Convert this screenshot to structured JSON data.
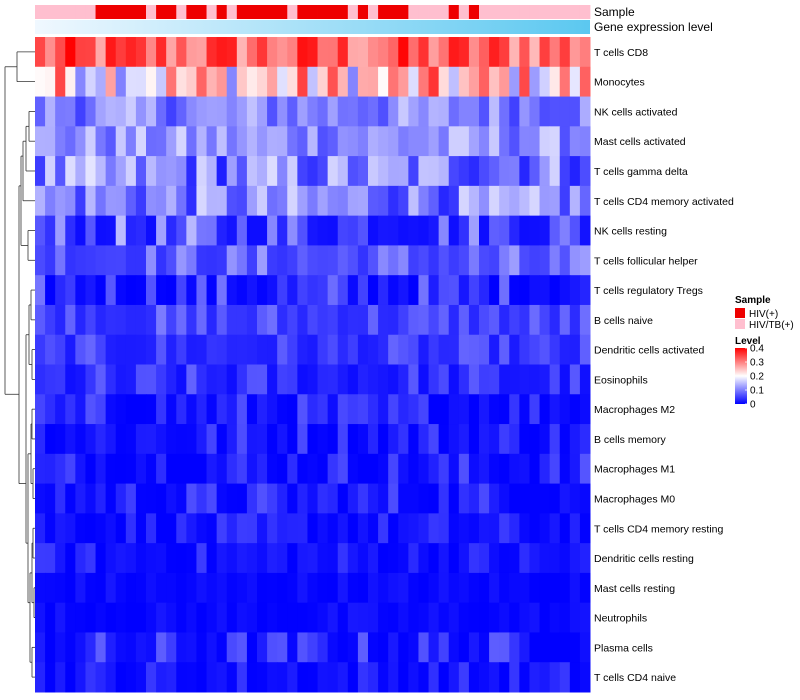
{
  "chart_data": {
    "type": "heatmap",
    "title": "",
    "annotations": [
      {
        "name": "Sample",
        "label": "Sample"
      },
      {
        "name": "Gene expression level",
        "label": "Gene expression level"
      }
    ],
    "sample_groups": {
      "title": "Sample",
      "entries": [
        {
          "label": "HIV(+)",
          "color": "#ee0000"
        },
        {
          "label": "HIV/TB(+)",
          "color": "#ffbfcf"
        }
      ],
      "columns": [
        "HIV/TB(+)",
        "HIV/TB(+)",
        "HIV/TB(+)",
        "HIV/TB(+)",
        "HIV/TB(+)",
        "HIV/TB(+)",
        "HIV(+)",
        "HIV(+)",
        "HIV(+)",
        "HIV(+)",
        "HIV(+)",
        "HIV/TB(+)",
        "HIV(+)",
        "HIV(+)",
        "HIV/TB(+)",
        "HIV(+)",
        "HIV(+)",
        "HIV/TB(+)",
        "HIV(+)",
        "HIV/TB(+)",
        "HIV(+)",
        "HIV(+)",
        "HIV(+)",
        "HIV(+)",
        "HIV(+)",
        "HIV/TB(+)",
        "HIV(+)",
        "HIV(+)",
        "HIV(+)",
        "HIV(+)",
        "HIV(+)",
        "HIV/TB(+)",
        "HIV(+)",
        "HIV/TB(+)",
        "HIV(+)",
        "HIV(+)",
        "HIV(+)",
        "HIV/TB(+)",
        "HIV/TB(+)",
        "HIV/TB(+)",
        "HIV/TB(+)",
        "HIV(+)",
        "HIV/TB(+)",
        "HIV(+)",
        "HIV/TB(+)",
        "HIV/TB(+)",
        "HIV/TB(+)",
        "HIV/TB(+)",
        "HIV/TB(+)",
        "HIV/TB(+)",
        "HIV/TB(+)",
        "HIV/TB(+)",
        "HIV/TB(+)",
        "HIV/TB(+)",
        "HIV/TB(+)"
      ]
    },
    "expression_gradient": {
      "from": "#f0f8ff",
      "to": "#5bc8f0"
    },
    "color_scale": {
      "title": "Level",
      "min": 0,
      "max": 0.4,
      "ticks": [
        0.4,
        0.3,
        0.2,
        0.1,
        0
      ],
      "tick_labels": [
        "0.4",
        "0.3",
        "0.2",
        "0.1",
        "0"
      ],
      "colors": [
        "#0000ff",
        "#ffffff",
        "#ff0000"
      ]
    },
    "row_labels": [
      "T cells CD8",
      "Monocytes",
      "NK cells activated",
      "Mast cells activated",
      "T cells gamma delta",
      "T cells CD4 memory activated",
      "NK cells resting",
      "T cells follicular helper",
      "T cells regulatory  Tregs",
      "B cells naive",
      "Dendritic cells activated",
      "Eosinophils",
      "Macrophages M2",
      "B cells memory",
      "Macrophages M1",
      "Macrophages M0",
      "T cells CD4 memory resting",
      "Dendritic cells resting",
      "Mast cells resting",
      "Neutrophils",
      "Plasma cells",
      "T cells CD4 naive"
    ],
    "n_columns": 55,
    "row_value_ranges": [
      [
        0.24,
        0.4
      ],
      [
        0.1,
        0.36
      ],
      [
        0.05,
        0.16
      ],
      [
        0.06,
        0.17
      ],
      [
        0.02,
        0.18
      ],
      [
        0.03,
        0.17
      ],
      [
        0.01,
        0.15
      ],
      [
        0.04,
        0.13
      ],
      [
        0.0,
        0.1
      ],
      [
        0.03,
        0.1
      ],
      [
        0.02,
        0.08
      ],
      [
        0.01,
        0.08
      ],
      [
        0.0,
        0.07
      ],
      [
        0.0,
        0.07
      ],
      [
        0.0,
        0.07
      ],
      [
        0.0,
        0.07
      ],
      [
        0.0,
        0.05
      ],
      [
        0.0,
        0.05
      ],
      [
        0.0,
        0.02
      ],
      [
        0.0,
        0.02
      ],
      [
        0.0,
        0.08
      ],
      [
        0.0,
        0.05
      ]
    ]
  }
}
